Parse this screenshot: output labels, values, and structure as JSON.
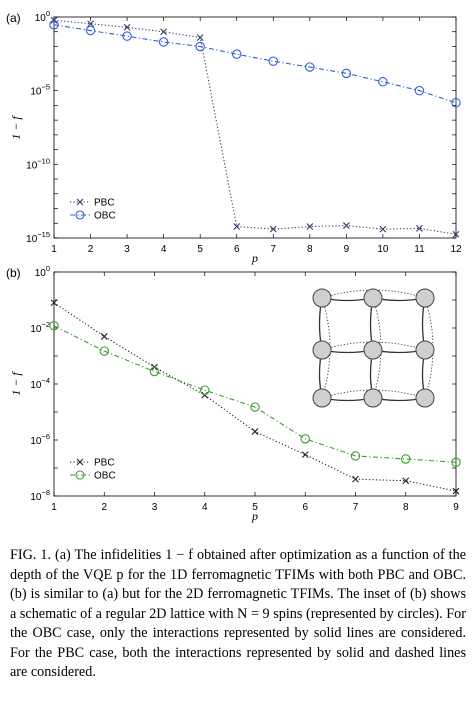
{
  "panels": {
    "a": {
      "label": "(a)",
      "xlabel": "p",
      "ylabel": "1 − f"
    },
    "b": {
      "label": "(b)",
      "xlabel": "p",
      "ylabel": "1 − f"
    }
  },
  "caption": "FIG. 1. (a) The infidelities 1 − f obtained after optimization as a function of the depth of the VQE p for the 1D ferromagnetic TFIMs with both PBC and OBC. (b) is similar to (a) but for the 2D ferromagnetic TFIMs. The inset of (b) shows a schematic of a regular 2D lattice with N = 9 spins (represented by circles). For the OBC case, only the interactions represented by solid lines are considered. For the PBC case, both the interactions represented by solid and dashed lines are considered.",
  "chart_data": [
    {
      "type": "line",
      "panel": "(a)",
      "xlabel": "p",
      "ylabel": "1 − f",
      "yscale": "log",
      "xlim": [
        1,
        12
      ],
      "ylim": [
        1e-15,
        1
      ],
      "x": [
        1,
        2,
        3,
        4,
        5,
        6,
        7,
        8,
        9,
        10,
        11,
        12
      ],
      "xticks": [
        "1",
        "2",
        "3",
        "4",
        "5",
        "6",
        "7",
        "8",
        "9",
        "10",
        "11",
        "12"
      ],
      "yticks": [
        "10^-15",
        "10^-10",
        "10^-5",
        "10^0"
      ],
      "legend": "bottom-left",
      "series": [
        {
          "name": "PBC",
          "marker": "x",
          "linestyle": "dotted",
          "color": "#2e3d66",
          "values": [
            0.6,
            0.35,
            0.2,
            0.1,
            0.04,
            6e-15,
            4e-15,
            6e-15,
            7e-15,
            4e-15,
            4.5e-15,
            1.8e-15
          ]
        },
        {
          "name": "OBC",
          "marker": "o",
          "linestyle": "dashdot",
          "color": "#2f63d6",
          "values": [
            0.3,
            0.12,
            0.05,
            0.02,
            0.01,
            0.003,
            0.001,
            0.0004,
            0.00015,
            4e-05,
            1e-05,
            1.5e-06
          ]
        }
      ]
    },
    {
      "type": "line",
      "panel": "(b)",
      "xlabel": "p",
      "ylabel": "1 − f",
      "yscale": "log",
      "xlim": [
        1,
        9
      ],
      "ylim": [
        1e-08,
        1
      ],
      "x": [
        1,
        2,
        3,
        4,
        5,
        6,
        7,
        8,
        9
      ],
      "xticks": [
        "1",
        "2",
        "3",
        "4",
        "5",
        "6",
        "7",
        "8",
        "9"
      ],
      "yticks": [
        "10^-8",
        "10^-6",
        "10^-4",
        "10^-2",
        "10^0"
      ],
      "legend": "bottom-left",
      "series": [
        {
          "name": "PBC",
          "marker": "x",
          "linestyle": "dotted",
          "color": "#222222",
          "values": [
            0.08,
            0.005,
            0.0004,
            4e-05,
            2e-06,
            3e-07,
            4e-08,
            3.5e-08,
            1.5e-08
          ]
        },
        {
          "name": "OBC",
          "marker": "o",
          "linestyle": "dashdot",
          "color": "#3aa12c",
          "values": [
            0.012,
            0.0015,
            0.00028,
            6e-05,
            1.5e-05,
            1.1e-06,
            2.7e-07,
            2.1e-07,
            1.6e-07
          ]
        }
      ]
    }
  ]
}
